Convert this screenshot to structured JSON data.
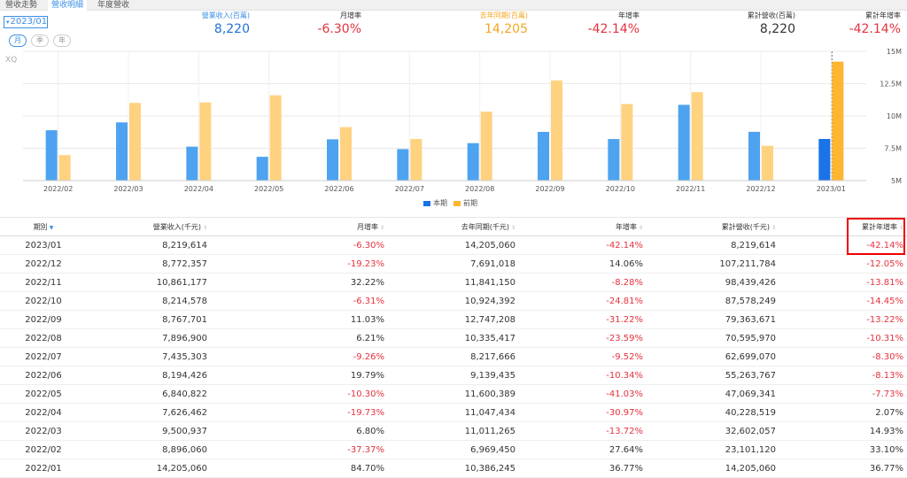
{
  "tabs": [
    {
      "label": "營收走勢",
      "active": false
    },
    {
      "label": "營收明細",
      "active": true
    },
    {
      "label": "年度營收",
      "active": false
    }
  ],
  "period": {
    "selected": "2023/01"
  },
  "pills": [
    {
      "label": "月",
      "active": true
    },
    {
      "label": "季",
      "active": false
    },
    {
      "label": "年",
      "active": false
    }
  ],
  "summary": [
    {
      "label": "營業收入(百萬)",
      "value": "8,220",
      "label_color": "blue",
      "value_color": "blue"
    },
    {
      "label": "月增率",
      "value": "-6.30%",
      "label_color": "default",
      "value_color": "red"
    },
    {
      "label": "去年同期(百萬)",
      "value": "14,205",
      "label_color": "orange",
      "value_color": "orange"
    },
    {
      "label": "年增率",
      "value": "-42.14%",
      "label_color": "default",
      "value_color": "red"
    },
    {
      "label": "累計營收(百萬)",
      "value": "8,220",
      "label_color": "default",
      "value_color": "gray"
    },
    {
      "label": "累計年增率",
      "value": "-42.14%",
      "label_color": "default",
      "value_color": "red"
    }
  ],
  "watermark": "XQ",
  "chart_data": {
    "type": "bar",
    "categories": [
      "2022/02",
      "2022/03",
      "2022/04",
      "2022/05",
      "2022/06",
      "2022/07",
      "2022/08",
      "2022/09",
      "2022/10",
      "2022/11",
      "2022/12",
      "2023/01"
    ],
    "series": [
      {
        "name": "本期",
        "color": "#4da3f0",
        "highlight_color": "#1a73e8",
        "values": [
          8.896,
          9.501,
          7.626,
          6.841,
          8.194,
          7.435,
          7.897,
          8.768,
          8.215,
          10.861,
          8.772,
          8.22
        ]
      },
      {
        "name": "前期",
        "color": "#ffd280",
        "highlight_color": "#ffb531",
        "values": [
          6.969,
          11.011,
          11.047,
          11.6,
          9.139,
          8.218,
          10.335,
          12.747,
          10.924,
          11.841,
          7.691,
          14.205
        ]
      }
    ],
    "y_ticks": [
      "5M",
      "7.5M",
      "10M",
      "12.5M",
      "15M"
    ],
    "ylim": [
      5,
      15
    ],
    "y_unit": "M",
    "legend": [
      "本期",
      "前期"
    ]
  },
  "table": {
    "headers": [
      "期別",
      "營業收入(千元)",
      "月增率",
      "去年同期(千元)",
      "年增率",
      "累計營收(千元)",
      "累計年增率"
    ],
    "rows": [
      [
        "2023/01",
        "8,219,614",
        "-6.30%",
        "14,205,060",
        "-42.14%",
        "8,219,614",
        "-42.14%"
      ],
      [
        "2022/12",
        "8,772,357",
        "-19.23%",
        "7,691,018",
        "14.06%",
        "107,211,784",
        "-12.05%"
      ],
      [
        "2022/11",
        "10,861,177",
        "32.22%",
        "11,841,150",
        "-8.28%",
        "98,439,426",
        "-13.81%"
      ],
      [
        "2022/10",
        "8,214,578",
        "-6.31%",
        "10,924,392",
        "-24.81%",
        "87,578,249",
        "-14.45%"
      ],
      [
        "2022/09",
        "8,767,701",
        "11.03%",
        "12,747,208",
        "-31.22%",
        "79,363,671",
        "-13.22%"
      ],
      [
        "2022/08",
        "7,896,900",
        "6.21%",
        "10,335,417",
        "-23.59%",
        "70,595,970",
        "-10.31%"
      ],
      [
        "2022/07",
        "7,435,303",
        "-9.26%",
        "8,217,666",
        "-9.52%",
        "62,699,070",
        "-8.30%"
      ],
      [
        "2022/06",
        "8,194,426",
        "19.79%",
        "9,139,435",
        "-10.34%",
        "55,263,767",
        "-8.13%"
      ],
      [
        "2022/05",
        "6,840,822",
        "-10.30%",
        "11,600,389",
        "-41.03%",
        "47,069,341",
        "-7.73%"
      ],
      [
        "2022/04",
        "7,626,462",
        "-19.73%",
        "11,047,434",
        "-30.97%",
        "40,228,519",
        "2.07%"
      ],
      [
        "2022/03",
        "9,500,937",
        "6.80%",
        "11,011,265",
        "-13.72%",
        "32,602,057",
        "14.93%"
      ],
      [
        "2022/02",
        "8,896,060",
        "-37.37%",
        "6,969,450",
        "27.64%",
        "23,101,120",
        "33.10%"
      ],
      [
        "2022/01",
        "14,205,060",
        "84.70%",
        "10,386,245",
        "36.77%",
        "14,205,060",
        "36.77%"
      ]
    ]
  }
}
